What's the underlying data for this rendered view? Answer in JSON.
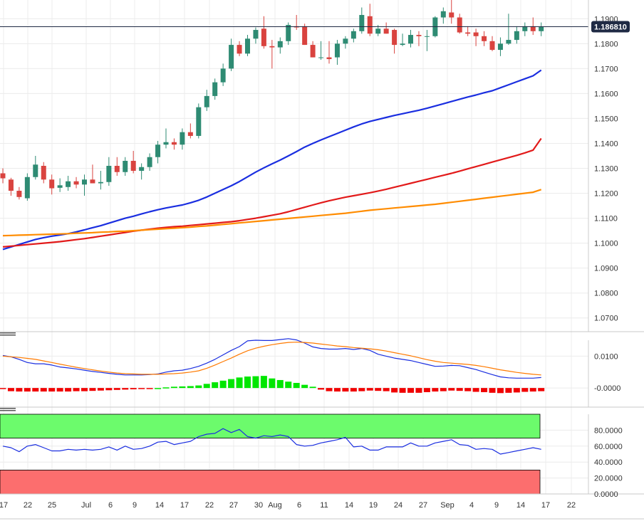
{
  "chart_data": [
    {
      "type": "candlestick",
      "ylim": [
        1.0645,
        1.1975
      ],
      "y_ticks": [
        "1.1900",
        "1.1800",
        "1.1700",
        "1.1600",
        "1.1500",
        "1.1400",
        "1.1300",
        "1.1200",
        "1.1100",
        "1.1000",
        "1.0900",
        "1.0800",
        "1.0700"
      ],
      "current_price": "1.186810",
      "candles": [
        [
          1.128,
          1.13,
          1.124,
          1.126
        ],
        [
          1.1255,
          1.1262,
          1.119,
          1.121
        ],
        [
          1.121,
          1.1225,
          1.1175,
          1.1185
        ],
        [
          1.118,
          1.128,
          1.117,
          1.1265
        ],
        [
          1.1265,
          1.135,
          1.1255,
          1.1315
        ],
        [
          1.131,
          1.1325,
          1.124,
          1.1255
        ],
        [
          1.1255,
          1.1275,
          1.1195,
          1.122
        ],
        [
          1.1222,
          1.126,
          1.1205,
          1.1232
        ],
        [
          1.1225,
          1.127,
          1.121,
          1.1248
        ],
        [
          1.1248,
          1.1265,
          1.122,
          1.1235
        ],
        [
          1.1235,
          1.1275,
          1.119,
          1.1255
        ],
        [
          1.1255,
          1.1315,
          1.124,
          1.124
        ],
        [
          1.124,
          1.129,
          1.1215,
          1.1245
        ],
        [
          1.1245,
          1.1345,
          1.123,
          1.131
        ],
        [
          1.131,
          1.1345,
          1.127,
          1.1285
        ],
        [
          1.1285,
          1.1345,
          1.127,
          1.133
        ],
        [
          1.133,
          1.137,
          1.128,
          1.129
        ],
        [
          1.129,
          1.132,
          1.1255,
          1.1305
        ],
        [
          1.1305,
          1.136,
          1.129,
          1.1345
        ],
        [
          1.1345,
          1.141,
          1.132,
          1.1395
        ],
        [
          1.1395,
          1.146,
          1.138,
          1.1405
        ],
        [
          1.1405,
          1.142,
          1.1375,
          1.1395
        ],
        [
          1.1395,
          1.146,
          1.1375,
          1.1445
        ],
        [
          1.1445,
          1.148,
          1.142,
          1.143
        ],
        [
          1.143,
          1.156,
          1.142,
          1.1545
        ],
        [
          1.1545,
          1.1615,
          1.153,
          1.159
        ],
        [
          1.159,
          1.166,
          1.1575,
          1.1645
        ],
        [
          1.1645,
          1.172,
          1.163,
          1.17
        ],
        [
          1.17,
          1.182,
          1.169,
          1.1795
        ],
        [
          1.1795,
          1.181,
          1.175,
          1.176
        ],
        [
          1.176,
          1.1835,
          1.175,
          1.182
        ],
        [
          1.182,
          1.1865,
          1.18,
          1.1855
        ],
        [
          1.186,
          1.191,
          1.178,
          1.179
        ],
        [
          1.179,
          1.1815,
          1.17,
          1.1785
        ],
        [
          1.1785,
          1.1825,
          1.176,
          1.181
        ],
        [
          1.181,
          1.1885,
          1.1795,
          1.1875
        ],
        [
          1.187,
          1.1915,
          1.1855,
          1.1865
        ],
        [
          1.187,
          1.188,
          1.1795,
          1.1795
        ],
        [
          1.1795,
          1.181,
          1.1745,
          1.1745
        ],
        [
          1.1745,
          1.181,
          1.1735,
          1.1745
        ],
        [
          1.1745,
          1.181,
          1.172,
          1.1738
        ],
        [
          1.1745,
          1.1815,
          1.1715,
          1.18
        ],
        [
          1.18,
          1.183,
          1.178,
          1.182
        ],
        [
          1.182,
          1.186,
          1.1805,
          1.185
        ],
        [
          1.185,
          1.1945,
          1.184,
          1.1915
        ],
        [
          1.191,
          1.196,
          1.183,
          1.184
        ],
        [
          1.184,
          1.1875,
          1.183,
          1.186
        ],
        [
          1.186,
          1.1885,
          1.184,
          1.184
        ],
        [
          1.1855,
          1.186,
          1.176,
          1.1795
        ],
        [
          1.1795,
          1.184,
          1.179,
          1.18
        ],
        [
          1.18,
          1.1855,
          1.1785,
          1.1835
        ],
        [
          1.1835,
          1.185,
          1.179,
          1.183
        ],
        [
          1.183,
          1.1855,
          1.177,
          1.183
        ],
        [
          1.183,
          1.191,
          1.1825,
          1.1905
        ],
        [
          1.1905,
          1.1945,
          1.188,
          1.193
        ],
        [
          1.1925,
          1.1995,
          1.188,
          1.1905
        ],
        [
          1.1905,
          1.192,
          1.184,
          1.1845
        ],
        [
          1.1845,
          1.187,
          1.183,
          1.184
        ],
        [
          1.1845,
          1.186,
          1.179,
          1.183
        ],
        [
          1.183,
          1.185,
          1.179,
          1.181
        ],
        [
          1.181,
          1.183,
          1.177,
          1.1775
        ],
        [
          1.1775,
          1.1825,
          1.175,
          1.18
        ],
        [
          1.18,
          1.192,
          1.1795,
          1.1815
        ],
        [
          1.1815,
          1.187,
          1.18,
          1.185
        ],
        [
          1.185,
          1.1885,
          1.183,
          1.187
        ],
        [
          1.187,
          1.1905,
          1.1835,
          1.185
        ],
        [
          1.185,
          1.1885,
          1.183,
          1.1868
        ]
      ],
      "moving_averages": [
        {
          "color": "#1a2ee0",
          "values": [
            1.0975,
            1.0985,
            1.0995,
            1.1005,
            1.1015,
            1.1022,
            1.1028,
            1.1033,
            1.1038,
            1.1045,
            1.1053,
            1.1062,
            1.107,
            1.108,
            1.109,
            1.11,
            1.1108,
            1.1117,
            1.1126,
            1.1134,
            1.1141,
            1.1147,
            1.1153,
            1.1162,
            1.1172,
            1.1185,
            1.12,
            1.1215,
            1.123,
            1.1247,
            1.1266,
            1.1285,
            1.1302,
            1.1318,
            1.1333,
            1.135,
            1.1367,
            1.1385,
            1.14,
            1.1414,
            1.1427,
            1.144,
            1.1453,
            1.1466,
            1.1478,
            1.1488,
            1.1496,
            1.1504,
            1.1512,
            1.1519,
            1.1526,
            1.1533,
            1.1541,
            1.155,
            1.1559,
            1.1568,
            1.1577,
            1.1586,
            1.1594,
            1.1603,
            1.1611,
            1.1623,
            1.1635,
            1.1647,
            1.1659,
            1.1671,
            1.1694
          ]
        },
        {
          "color": "#e21a1a",
          "values": [
            1.0985,
            1.0988,
            1.0991,
            1.0994,
            1.0997,
            1.1,
            1.1003,
            1.1006,
            1.101,
            1.1014,
            1.1018,
            1.1023,
            1.1028,
            1.1033,
            1.1038,
            1.1043,
            1.1048,
            1.1052,
            1.1056,
            1.106,
            1.1063,
            1.1066,
            1.1068,
            1.1071,
            1.1074,
            1.1077,
            1.108,
            1.1083,
            1.1086,
            1.109,
            1.1095,
            1.11,
            1.1106,
            1.1112,
            1.1118,
            1.1126,
            1.1135,
            1.1144,
            1.1153,
            1.1162,
            1.117,
            1.1177,
            1.1184,
            1.119,
            1.1196,
            1.1202,
            1.1209,
            1.1216,
            1.1224,
            1.1232,
            1.124,
            1.1248,
            1.1256,
            1.1264,
            1.1272,
            1.128,
            1.1289,
            1.1298,
            1.1307,
            1.1316,
            1.1325,
            1.1334,
            1.1343,
            1.1352,
            1.1362,
            1.1373,
            1.142
          ]
        },
        {
          "color": "#ff8c00",
          "values": [
            1.103,
            1.1031,
            1.1032,
            1.1033,
            1.1034,
            1.1035,
            1.1036,
            1.1037,
            1.1038,
            1.104,
            1.1041,
            1.1042,
            1.1044,
            1.1045,
            1.1047,
            1.1048,
            1.105,
            1.1052,
            1.1054,
            1.1056,
            1.1058,
            1.106,
            1.1062,
            1.1064,
            1.1067,
            1.1069,
            1.1072,
            1.1075,
            1.1078,
            1.1081,
            1.1084,
            1.1087,
            1.109,
            1.1093,
            1.1096,
            1.1099,
            1.1102,
            1.1105,
            1.1108,
            1.1111,
            1.1114,
            1.1117,
            1.112,
            1.1124,
            1.1128,
            1.1132,
            1.1135,
            1.1138,
            1.1141,
            1.1144,
            1.1147,
            1.115,
            1.1153,
            1.1156,
            1.116,
            1.1164,
            1.1168,
            1.1172,
            1.1176,
            1.118,
            1.1184,
            1.1188,
            1.1192,
            1.1196,
            1.12,
            1.1204,
            1.1215
          ]
        }
      ]
    },
    {
      "type": "macd",
      "ylim": [
        -0.006,
        0.015
      ],
      "y_ticks": [
        "0.0100",
        "-0.0000"
      ],
      "histogram": [
        -0.0003,
        -0.001,
        -0.0011,
        -0.0011,
        -0.0011,
        -0.0011,
        -0.0011,
        -0.0011,
        -0.0011,
        -0.001,
        -0.001,
        -0.0009,
        -0.0008,
        -0.0007,
        -0.0006,
        -0.0005,
        -0.0004,
        -0.0003,
        -0.0002,
        0.0,
        0.0002,
        0.0004,
        0.0005,
        0.0006,
        0.0008,
        0.0013,
        0.0018,
        0.0023,
        0.0028,
        0.0033,
        0.0036,
        0.0037,
        0.0038,
        0.003,
        0.0025,
        0.002,
        0.0016,
        0.001,
        0.0004,
        -0.0005,
        -0.001,
        -0.0011,
        -0.0011,
        -0.0011,
        -0.001,
        -0.0008,
        -0.0009,
        -0.001,
        -0.0014,
        -0.0015,
        -0.0015,
        -0.0015,
        -0.0013,
        -0.0011,
        -0.001,
        -0.0008,
        -0.0009,
        -0.001,
        -0.0012,
        -0.0013,
        -0.0015,
        -0.0016,
        -0.0015,
        -0.0014,
        -0.0012,
        -0.0011,
        -0.001
      ],
      "macd": [
        0.0102,
        0.0098,
        0.009,
        0.008,
        0.0076,
        0.0076,
        0.0072,
        0.0066,
        0.0063,
        0.006,
        0.0056,
        0.0052,
        0.0049,
        0.0046,
        0.0043,
        0.0041,
        0.0041,
        0.0041,
        0.0042,
        0.0044,
        0.005,
        0.0054,
        0.0056,
        0.0061,
        0.0068,
        0.0078,
        0.009,
        0.0104,
        0.0118,
        0.013,
        0.0148,
        0.015,
        0.0149,
        0.0149,
        0.0152,
        0.0155,
        0.0151,
        0.0141,
        0.0129,
        0.0124,
        0.0122,
        0.0122,
        0.0124,
        0.0121,
        0.0124,
        0.0118,
        0.0106,
        0.01,
        0.0094,
        0.009,
        0.0086,
        0.008,
        0.0074,
        0.0068,
        0.0069,
        0.0071,
        0.007,
        0.0064,
        0.0058,
        0.005,
        0.0042,
        0.0035,
        0.0032,
        0.0031,
        0.0031,
        0.0031,
        0.0033
      ],
      "signal": [
        0.01,
        0.0098,
        0.0096,
        0.0093,
        0.009,
        0.0085,
        0.008,
        0.0075,
        0.007,
        0.0065,
        0.0061,
        0.0057,
        0.0053,
        0.005,
        0.0047,
        0.0045,
        0.0044,
        0.0043,
        0.0043,
        0.0043,
        0.0044,
        0.0045,
        0.0047,
        0.005,
        0.0054,
        0.0062,
        0.0072,
        0.0083,
        0.0094,
        0.0106,
        0.0117,
        0.0125,
        0.0131,
        0.0136,
        0.014,
        0.0143,
        0.0144,
        0.0143,
        0.0141,
        0.0138,
        0.0135,
        0.0132,
        0.013,
        0.0127,
        0.0125,
        0.0123,
        0.012,
        0.0116,
        0.0111,
        0.0106,
        0.0101,
        0.0095,
        0.0089,
        0.0084,
        0.008,
        0.0078,
        0.0076,
        0.0074,
        0.0071,
        0.0067,
        0.0062,
        0.0057,
        0.0053,
        0.0049,
        0.0046,
        0.0043,
        0.0041
      ]
    },
    {
      "type": "line",
      "ylim": [
        0,
        100
      ],
      "y_ticks": [
        "80.0000",
        "60.0000",
        "40.0000",
        "20.0000",
        "0.0000"
      ],
      "upper_zone": [
        70,
        100
      ],
      "lower_zone": [
        0,
        30
      ],
      "values": [
        60,
        58,
        53,
        60,
        62,
        58,
        54,
        54,
        56,
        55,
        56,
        55,
        56,
        59,
        55,
        60,
        56,
        57,
        60,
        65,
        66,
        62,
        64,
        66,
        72,
        75,
        76,
        82,
        77,
        81,
        72,
        70,
        73,
        72,
        74,
        72,
        62,
        60,
        61,
        64,
        66,
        68,
        71,
        59,
        60,
        55,
        55,
        59,
        59,
        59,
        64,
        60,
        60,
        64,
        66,
        68,
        62,
        61,
        56,
        57,
        56,
        50,
        52,
        54,
        56,
        58,
        56
      ]
    }
  ],
  "x_ticks": [
    "17",
    "22",
    "25",
    "Jul",
    "6",
    "9",
    "14",
    "17",
    "22",
    "27",
    "30",
    "Aug",
    "6",
    "11",
    "14",
    "19",
    "24",
    "27",
    "Sep",
    "4",
    "9",
    "14",
    "17",
    "22"
  ]
}
